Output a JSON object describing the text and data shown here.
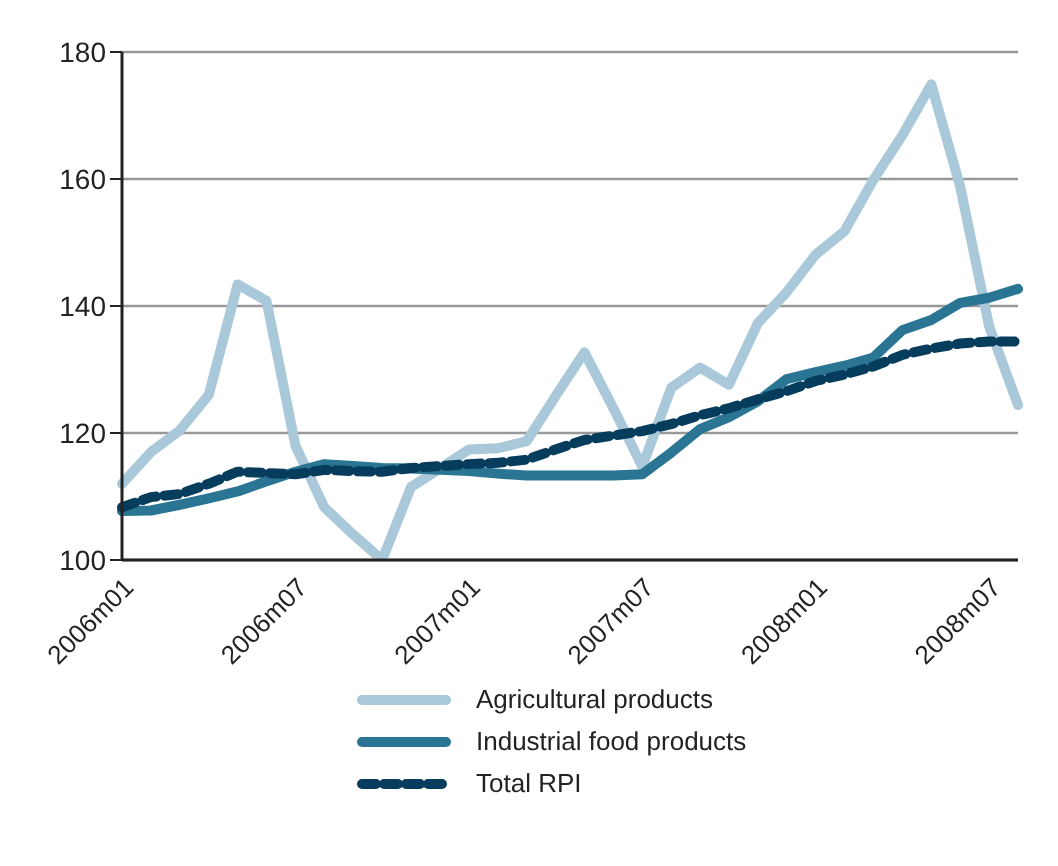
{
  "chart_data": {
    "type": "line",
    "categories": [
      "2006m01",
      null,
      null,
      null,
      null,
      null,
      "2006m07",
      null,
      null,
      null,
      null,
      null,
      "2007m01",
      null,
      null,
      null,
      null,
      null,
      "2007m07",
      null,
      null,
      null,
      null,
      null,
      "2008m01",
      null,
      null,
      null,
      null,
      null,
      "2008m07",
      null
    ],
    "series": [
      {
        "name": "Agricultural products",
        "color": "#a9c8d9",
        "values": [
          112,
          117,
          120.4,
          126,
          143.4,
          140.8,
          118,
          108.3,
          104,
          100,
          111.5,
          114.4,
          117.4,
          117.6,
          118.7,
          125.8,
          132.7,
          123.9,
          114.7,
          127.1,
          130.3,
          127.6,
          137.3,
          142.2,
          148.1,
          151.8,
          159.9,
          166.9,
          174.9,
          158.8,
          136.8,
          124.4
        ]
      },
      {
        "name": "Industrial food products",
        "color": "#2a7593",
        "values": [
          107.7,
          107.8,
          108.7,
          109.7,
          110.8,
          112.4,
          113.9,
          115.1,
          114.8,
          114.5,
          114.4,
          114.2,
          114,
          113.6,
          113.3,
          113.3,
          113.3,
          113.3,
          113.5,
          116.9,
          120.6,
          122.5,
          125,
          128.5,
          129.6,
          130.6,
          131.9,
          136.2,
          137.8,
          140.5,
          141.3,
          142.7
        ]
      },
      {
        "name": "Total RPI",
        "color": "#063d5c",
        "line_style": "dashed",
        "values": [
          108.3,
          109.9,
          110.4,
          112,
          113.9,
          113.7,
          113.5,
          114.2,
          114,
          113.9,
          114.5,
          114.8,
          115.1,
          115.3,
          115.8,
          117.4,
          118.9,
          119.6,
          120.3,
          121.4,
          122.8,
          123.9,
          125.3,
          126.6,
          128.2,
          129.2,
          130.5,
          132.3,
          133.3,
          134.1,
          134.4,
          134.4
        ]
      }
    ],
    "ylim": [
      100,
      180
    ],
    "yticks": [
      100,
      120,
      140,
      160,
      180
    ],
    "grid": "y",
    "legend": "bottom",
    "marker": "none"
  }
}
